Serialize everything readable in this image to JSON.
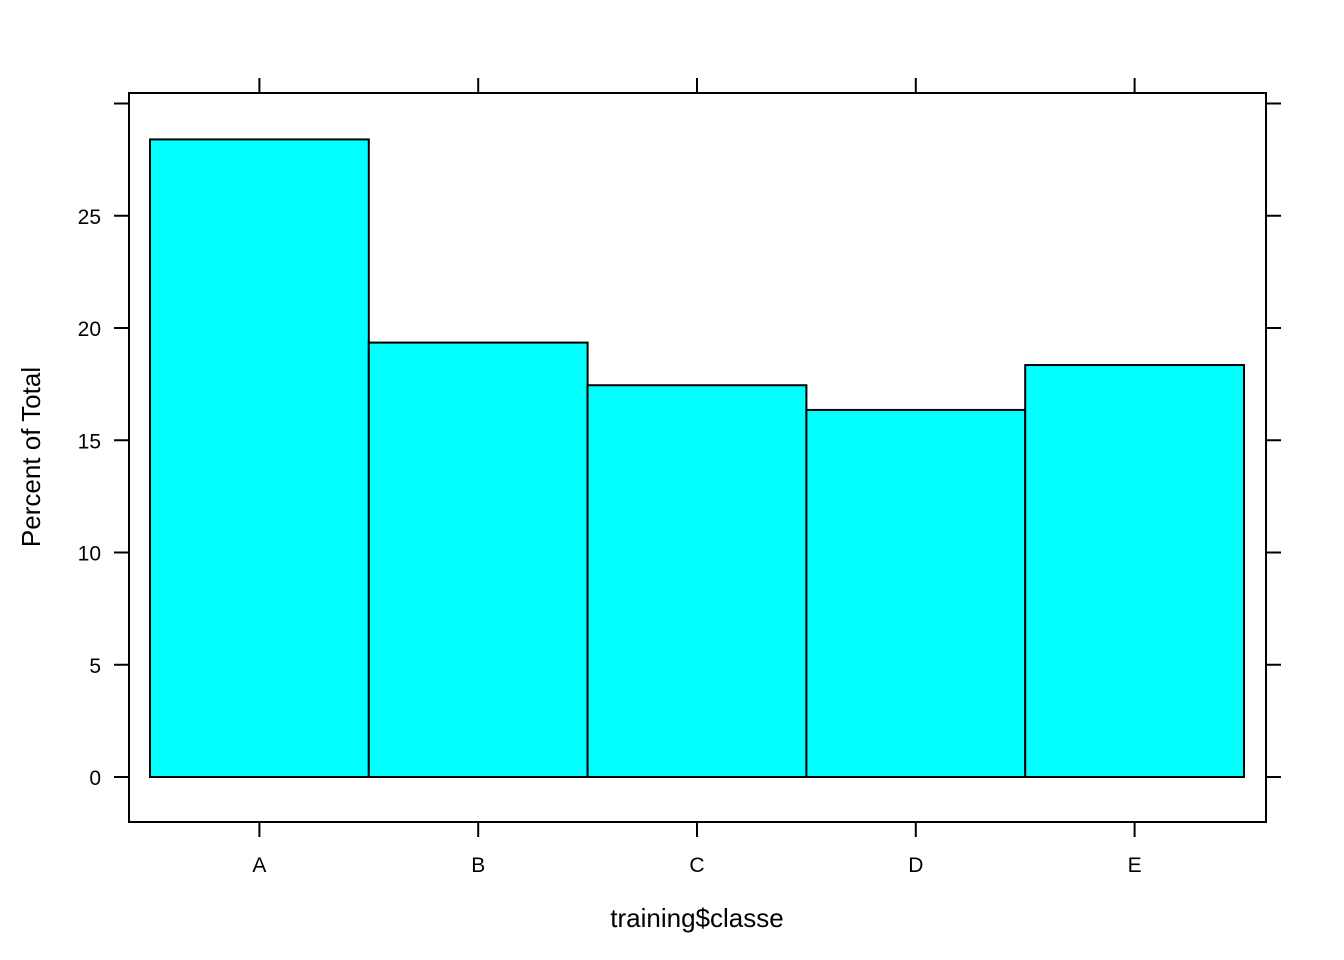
{
  "chart_data": {
    "type": "bar",
    "categories": [
      "A",
      "B",
      "C",
      "D",
      "E"
    ],
    "values": [
      28.4,
      19.35,
      17.45,
      16.35,
      18.35
    ],
    "xlabel": "training$classe",
    "ylabel": "Percent of Total",
    "ylim": [
      -2,
      30
    ],
    "yticks": [
      0,
      5,
      10,
      15,
      20,
      25
    ],
    "bar_color": "#00FFFF",
    "grid": false,
    "legend": "none"
  }
}
